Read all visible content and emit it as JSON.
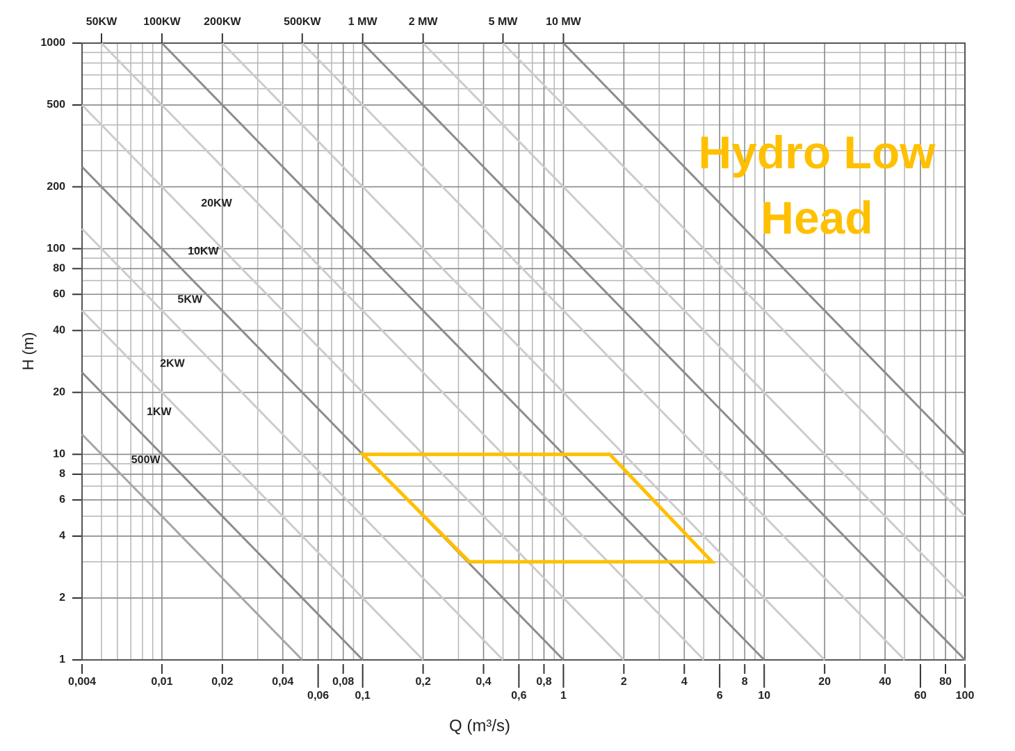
{
  "chart_data": {
    "type": "line",
    "title": "Hydro Low Head",
    "x_label": "Q (m³/s)",
    "y_label": "H (m)",
    "log_x": true,
    "log_y": true,
    "grid": true,
    "minor_grid": true,
    "xlim": [
      0.004,
      100
    ],
    "ylim": [
      1,
      1000
    ],
    "xticks": [
      {
        "value": 0.004,
        "label": "0,004"
      },
      {
        "value": 0.01,
        "label": "0,01"
      },
      {
        "value": 0.02,
        "label": "0,02"
      },
      {
        "value": 0.04,
        "label": "0,04"
      },
      {
        "value": 0.06,
        "label": "0,06"
      },
      {
        "value": 0.08,
        "label": "0,08"
      },
      {
        "value": 0.1,
        "label": "0,1"
      },
      {
        "value": 0.2,
        "label": "0,2"
      },
      {
        "value": 0.4,
        "label": "0,4"
      },
      {
        "value": 0.6,
        "label": "0,6"
      },
      {
        "value": 0.8,
        "label": "0,8"
      },
      1,
      2,
      4,
      6,
      8,
      10,
      20,
      40,
      60,
      80,
      100
    ],
    "yticks": [
      1,
      2,
      4,
      6,
      8,
      10,
      20,
      40,
      60,
      80,
      100,
      200,
      500,
      1000
    ],
    "series": [
      {
        "name": "500W",
        "color": "#a6a6a6",
        "x": [
          0.004,
          0.05
        ],
        "values": [
          12.5,
          1
        ]
      },
      {
        "name": "1KW",
        "color": "#8c8c8c",
        "x": [
          0.004,
          0.1
        ],
        "values": [
          25,
          1
        ]
      },
      {
        "name": "2KW",
        "color": "#cccccc",
        "x": [
          0.004,
          0.2
        ],
        "values": [
          50,
          1
        ]
      },
      {
        "name": "5KW",
        "color": "#cccccc",
        "x": [
          0.004,
          0.5
        ],
        "values": [
          125,
          1
        ]
      },
      {
        "name": "10KW",
        "color": "#8c8c8c",
        "x": [
          0.004,
          1
        ],
        "values": [
          250,
          1
        ]
      },
      {
        "name": "20KW",
        "color": "#cccccc",
        "x": [
          0.004,
          2
        ],
        "values": [
          500,
          1
        ]
      },
      {
        "name": "50KW",
        "color": "#cccccc",
        "x": [
          0.005,
          5
        ],
        "values": [
          1000,
          1
        ]
      },
      {
        "name": "100KW",
        "color": "#8c8c8c",
        "x": [
          0.01,
          10
        ],
        "values": [
          1000,
          1
        ]
      },
      {
        "name": "200KW",
        "color": "#cccccc",
        "x": [
          0.02,
          20
        ],
        "values": [
          1000,
          1
        ]
      },
      {
        "name": "500KW",
        "color": "#cccccc",
        "x": [
          0.05,
          50
        ],
        "values": [
          1000,
          1
        ]
      },
      {
        "name": "1 MW",
        "color": "#8c8c8c",
        "x": [
          0.1,
          100
        ],
        "values": [
          1000,
          1
        ]
      },
      {
        "name": "2 MW",
        "color": "#cccccc",
        "x": [
          0.2,
          100
        ],
        "values": [
          1000,
          2
        ]
      },
      {
        "name": "5 MW",
        "color": "#cccccc",
        "x": [
          0.5,
          100
        ],
        "values": [
          1000,
          5
        ]
      },
      {
        "name": "10 MW",
        "color": "#8c8c8c",
        "x": [
          1,
          100
        ],
        "values": [
          1000,
          10
        ]
      }
    ],
    "region": {
      "color": "#ffc000",
      "x": [
        0.1,
        1.7,
        5.5,
        0.34
      ],
      "values": [
        10,
        10,
        3,
        3
      ]
    }
  }
}
